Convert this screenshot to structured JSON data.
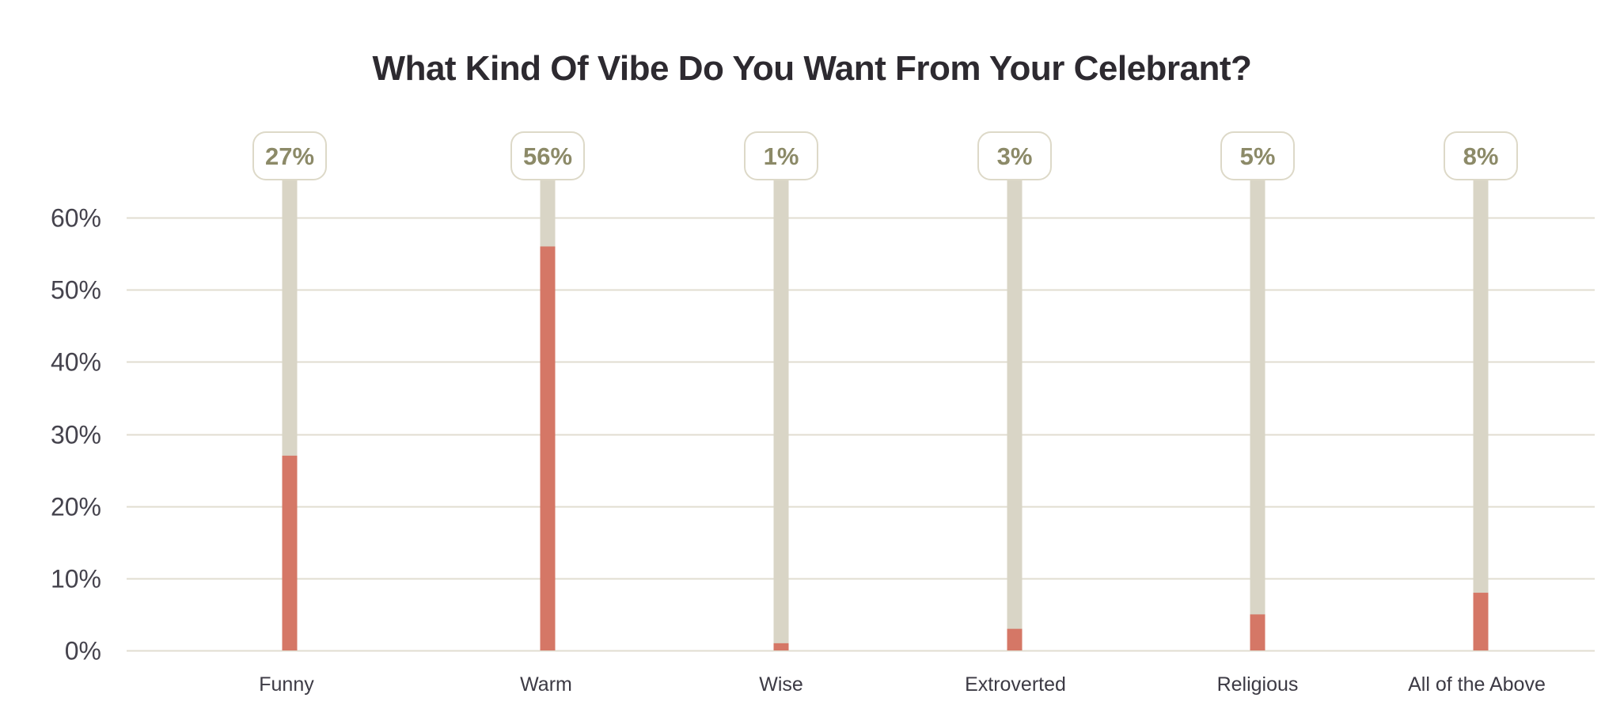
{
  "chart_data": {
    "type": "bar",
    "title": "What Kind Of Vibe Do You Want From Your Celebrant?",
    "xlabel": "",
    "ylabel": "",
    "categories": [
      "Funny",
      "Warm",
      "Wise",
      "Extroverted",
      "Religious",
      "All of the Above"
    ],
    "values": [
      27,
      56,
      1,
      3,
      5,
      8
    ],
    "value_labels": [
      "27%",
      "56%",
      "1%",
      "3%",
      "5%",
      "8%"
    ],
    "ylim": [
      0,
      60
    ],
    "yticks": [
      0,
      10,
      20,
      30,
      40,
      50,
      60
    ],
    "ytick_labels": [
      "0%",
      "10%",
      "20%",
      "30%",
      "40%",
      "50%",
      "60%"
    ],
    "grid": true,
    "legend": "none",
    "colors": {
      "bar_fill": "#d57766",
      "bar_track": "#d9d5c6",
      "grid": "#e1ddd0",
      "badge_border": "#ddd9c8",
      "badge_text": "#8c8a68",
      "title": "#2d2a30",
      "axis_text": "#45434d"
    }
  }
}
